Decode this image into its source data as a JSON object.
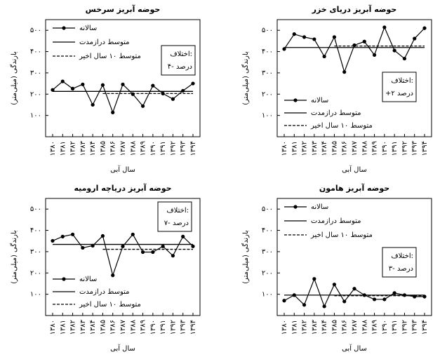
{
  "chart_data": [
    {
      "type": "line",
      "title": "حوضه آبریز سرخس",
      "xlabel": "سال آبی",
      "ylabel": "بارندگی (میلی‌متر)",
      "categories": [
        "۱۳۸۰",
        "۱۳۸۱",
        "۱۳۸۲",
        "۱۳۸۳",
        "۱۳۸۴",
        "۱۳۸۵",
        "۱۳۸۶",
        "۱۳۸۷",
        "۱۳۸۸",
        "۱۳۸۹",
        "۱۳۹۰",
        "۱۳۹۱",
        "۱۳۹۲",
        "۱۳۹۳",
        "۱۳۹۴"
      ],
      "ylim": [
        0,
        550
      ],
      "yticks": [
        {
          "value": 100,
          "label": "۱۰۰"
        },
        {
          "value": 200,
          "label": "۲۰۰"
        },
        {
          "value": 300,
          "label": "۳۰۰"
        },
        {
          "value": 400,
          "label": "۴۰۰"
        },
        {
          "value": 500,
          "label": "۵۰۰"
        }
      ],
      "legend": "top",
      "annotation": [
        "اختلاف:",
        "۴- درصد"
      ],
      "series": [
        {
          "name": "سالانه",
          "color": "#000000",
          "style": "solid",
          "marker": true,
          "values": [
            220,
            260,
            226,
            246,
            150,
            243,
            114,
            246,
            200,
            144,
            240,
            203,
            177,
            216,
            250
          ]
        },
        {
          "name": "متوسط درازمدت",
          "color": "#000000",
          "style": "solid",
          "marker": false,
          "values": [
            213,
            213,
            213,
            213,
            213,
            213,
            213,
            213,
            213,
            213,
            213,
            213,
            213,
            213,
            213
          ]
        },
        {
          "name": "متوسط ۱۰ سال اخیر",
          "color": "#000000",
          "style": "dashed",
          "marker": false,
          "values": [
            null,
            null,
            null,
            null,
            null,
            203,
            203,
            203,
            203,
            203,
            203,
            203,
            203,
            203,
            203
          ]
        }
      ]
    },
    {
      "type": "line",
      "title": "حوضه آبریز دریای خزر",
      "xlabel": "سال آبی",
      "ylabel": "بارندگی (میلی‌متر)",
      "categories": [
        "۱۳۸۰",
        "۱۳۸۱",
        "۱۳۸۲",
        "۱۳۸۳",
        "۱۳۸۴",
        "۱۳۸۵",
        "۱۳۸۶",
        "۱۳۸۷",
        "۱۳۸۸",
        "۱۳۸۹",
        "۱۳۹۰",
        "۱۳۹۱",
        "۱۳۹۲",
        "۱۳۹۳",
        "۱۳۹۴"
      ],
      "ylim": [
        0,
        550
      ],
      "yticks": [
        {
          "value": 100,
          "label": "۱۰۰"
        },
        {
          "value": 200,
          "label": "۲۰۰"
        },
        {
          "value": 300,
          "label": "۳۰۰"
        },
        {
          "value": 400,
          "label": "۴۰۰"
        },
        {
          "value": 500,
          "label": "۵۰۰"
        }
      ],
      "legend": "bottom",
      "annotation": [
        "اختلاف:",
        "+۲ درصد"
      ],
      "series": [
        {
          "name": "سالانه",
          "color": "#000000",
          "style": "solid",
          "marker": true,
          "values": [
            412,
            482,
            468,
            458,
            377,
            468,
            304,
            430,
            447,
            384,
            514,
            405,
            367,
            461,
            510
          ]
        },
        {
          "name": "متوسط درازمدت",
          "color": "#000000",
          "style": "solid",
          "marker": false,
          "values": [
            419,
            419,
            419,
            419,
            419,
            419,
            419,
            419,
            419,
            419,
            419,
            419,
            419,
            419,
            419
          ]
        },
        {
          "name": "متوسط ۱۰ سال اخیر",
          "color": "#000000",
          "style": "dashed",
          "marker": false,
          "values": [
            null,
            null,
            null,
            null,
            null,
            426,
            426,
            426,
            426,
            426,
            426,
            426,
            426,
            426,
            426
          ]
        }
      ]
    },
    {
      "type": "line",
      "title": "حوضه آبریز دریاچه ارومیه",
      "xlabel": "سال آبی",
      "ylabel": "بارندگی (میلی‌متر)",
      "categories": [
        "۱۳۸۰",
        "۱۳۸۱",
        "۱۳۸۲",
        "۱۳۸۳",
        "۱۳۸۴",
        "۱۳۸۵",
        "۱۳۸۶",
        "۱۳۸۷",
        "۱۳۸۸",
        "۱۳۸۹",
        "۱۳۹۰",
        "۱۳۹۱",
        "۱۳۹۲",
        "۱۳۹۳",
        "۱۳۹۴"
      ],
      "ylim": [
        0,
        550
      ],
      "yticks": [
        {
          "value": 100,
          "label": "۱۰۰"
        },
        {
          "value": 200,
          "label": "۲۰۰"
        },
        {
          "value": 300,
          "label": "۳۰۰"
        },
        {
          "value": 400,
          "label": "۴۰۰"
        },
        {
          "value": 500,
          "label": "۵۰۰"
        }
      ],
      "legend": "bottom",
      "annotation": [
        "اختلاف:",
        "۷- درصد"
      ],
      "series": [
        {
          "name": "سالانه",
          "color": "#000000",
          "style": "solid",
          "marker": true,
          "values": [
            351,
            371,
            381,
            318,
            328,
            374,
            189,
            325,
            381,
            298,
            298,
            325,
            281,
            371,
            325
          ]
        },
        {
          "name": "متوسط درازمدت",
          "color": "#000000",
          "style": "solid",
          "marker": false,
          "values": [
            334,
            334,
            334,
            334,
            334,
            334,
            334,
            334,
            334,
            334,
            334,
            334,
            334,
            334,
            334
          ]
        },
        {
          "name": "متوسط ۱۰ سال اخیر",
          "color": "#000000",
          "style": "dashed",
          "marker": false,
          "values": [
            null,
            null,
            null,
            null,
            null,
            311,
            311,
            311,
            311,
            311,
            311,
            311,
            311,
            311,
            311
          ]
        }
      ]
    },
    {
      "type": "line",
      "title": "حوضه آبریز هامون",
      "xlabel": "سال آبی",
      "ylabel": "بارندگی (میلی‌متر)",
      "categories": [
        "۱۳۸۰",
        "۱۳۸۱",
        "۱۳۸۲",
        "۱۳۸۳",
        "۱۳۸۴",
        "۱۳۸۵",
        "۱۳۸۶",
        "۱۳۸۷",
        "۱۳۸۸",
        "۱۳۸۹",
        "۱۳۹۰",
        "۱۳۹۱",
        "۱۳۹۲",
        "۱۳۹۳",
        "۱۳۹۴"
      ],
      "ylim": [
        0,
        550
      ],
      "yticks": [
        {
          "value": 100,
          "label": "۱۰۰"
        },
        {
          "value": 200,
          "label": "۲۰۰"
        },
        {
          "value": 300,
          "label": "۳۰۰"
        },
        {
          "value": 400,
          "label": "۴۰۰"
        },
        {
          "value": 500,
          "label": "۵۰۰"
        }
      ],
      "legend": "top",
      "annotation": [
        "اختلاف:",
        "۳- درصد"
      ],
      "series": [
        {
          "name": "سالانه",
          "color": "#000000",
          "style": "solid",
          "marker": true,
          "values": [
            70,
            96,
            50,
            172,
            43,
            146,
            66,
            126,
            96,
            76,
            76,
            106,
            96,
            89,
            89
          ]
        },
        {
          "name": "متوسط درازمدت",
          "color": "#000000",
          "style": "solid",
          "marker": false,
          "values": [
            96,
            96,
            96,
            96,
            96,
            96,
            96,
            96,
            96,
            96,
            96,
            96,
            96,
            96,
            96
          ]
        },
        {
          "name": "متوسط ۱۰ سال اخیر",
          "color": "#000000",
          "style": "dashed",
          "marker": false,
          "values": [
            null,
            null,
            null,
            null,
            null,
            93,
            93,
            93,
            93,
            93,
            93,
            93,
            93,
            93,
            93
          ]
        }
      ]
    }
  ]
}
